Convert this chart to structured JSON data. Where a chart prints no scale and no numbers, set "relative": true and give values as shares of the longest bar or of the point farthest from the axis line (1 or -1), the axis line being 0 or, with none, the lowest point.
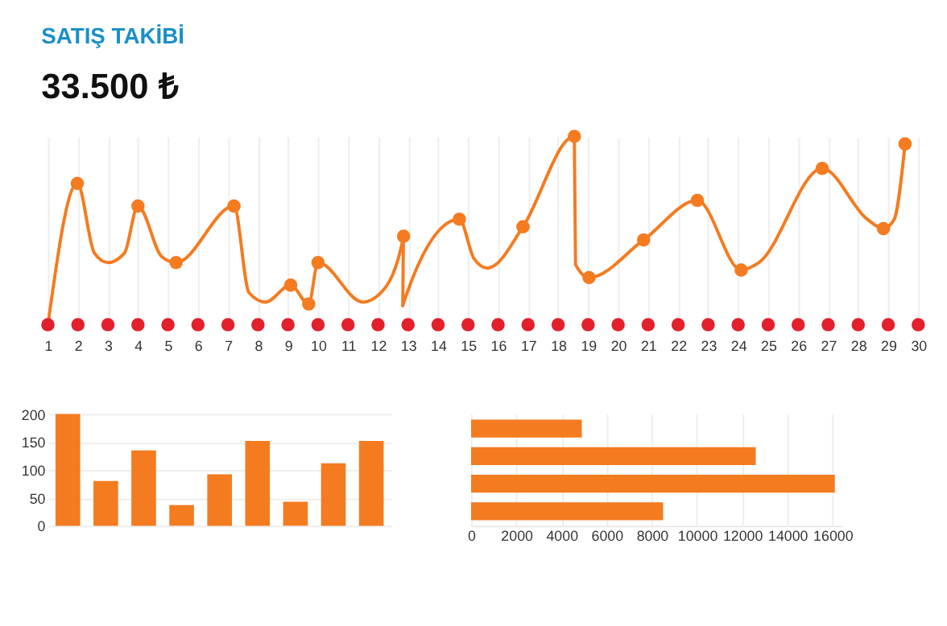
{
  "chart_data": [
    {
      "type": "line",
      "title": "SATIŞ TAKİBİ",
      "subtitle": "33.500 ₺",
      "relative": true,
      "grid": "x",
      "legend": false,
      "tick_labels": "x",
      "xlim": [
        1,
        30
      ],
      "xticks": [
        1,
        2,
        3,
        4,
        5,
        6,
        7,
        8,
        9,
        10,
        11,
        12,
        13,
        14,
        15,
        16,
        17,
        18,
        19,
        20,
        21,
        22,
        23,
        24,
        25,
        26,
        27,
        28,
        29,
        30
      ],
      "series": [
        {
          "type": "line",
          "color": "#f47b20",
          "marker": "none",
          "line_style": "solid",
          "x": [
            1,
            1.98,
            2.55,
            3.0,
            3.55,
            4.0,
            4.8,
            5.27,
            7.2,
            7.7,
            8.25,
            9.09,
            9.69,
            10.0,
            11.5,
            12.1,
            12.85,
            12.82,
            14.71,
            15.2,
            15.65,
            15.83,
            16.83,
            18.54,
            18.58,
            19.03,
            20.85,
            22.64,
            24.1,
            24.69,
            26.8,
            28.3,
            28.84,
            29.2,
            29.56
          ],
          "values": [
            0,
            0.75,
            0.38,
            0.33,
            0.38,
            0.63,
            0.36,
            0.33,
            0.63,
            0.17,
            0.12,
            0.21,
            0.11,
            0.33,
            0.12,
            0.17,
            0.47,
            0.1,
            0.56,
            0.35,
            0.3,
            0.31,
            0.52,
            1.0,
            0.32,
            0.25,
            0.45,
            0.66,
            0.29,
            0.33,
            0.83,
            0.56,
            0.51,
            0.56,
            0.96
          ]
        },
        {
          "type": "scatter",
          "color": "#f47b20",
          "marker": "circle",
          "x": [
            1.98,
            4.0,
            5.27,
            7.2,
            9.09,
            9.69,
            10.0,
            12.85,
            14.71,
            16.83,
            18.54,
            19.03,
            20.85,
            22.64,
            24.1,
            26.8,
            28.84,
            29.56
          ],
          "values": [
            0.75,
            0.63,
            0.33,
            0.63,
            0.21,
            0.11,
            0.33,
            0.47,
            0.56,
            0.52,
            1.0,
            0.25,
            0.45,
            0.66,
            0.29,
            0.83,
            0.51,
            0.96
          ]
        },
        {
          "type": "scatter",
          "color": "#e3202b",
          "marker": "circle",
          "x": [
            1,
            2,
            3,
            4,
            5,
            6,
            7,
            8,
            9,
            10,
            11,
            12,
            13,
            14,
            15,
            16,
            17,
            18,
            19,
            20,
            21,
            22,
            23,
            24,
            25,
            26,
            27,
            28,
            29,
            30
          ],
          "values": [
            0,
            0,
            0,
            0,
            0,
            0,
            0,
            0,
            0,
            0,
            0,
            0,
            0,
            0,
            0,
            0,
            0,
            0,
            0,
            0,
            0,
            0,
            0,
            0,
            0,
            0,
            0,
            0,
            0,
            0
          ]
        }
      ]
    },
    {
      "type": "bar",
      "categories": [
        null,
        null,
        null,
        null,
        null,
        null,
        null,
        null,
        null
      ],
      "values": [
        200,
        80,
        135,
        37,
        92,
        152,
        43,
        112,
        152
      ],
      "color": "#f47b20",
      "ylim": [
        0,
        200
      ],
      "yticks": [
        0,
        50,
        100,
        150,
        200
      ],
      "grid": "y",
      "tick_labels": "y",
      "legend": false
    },
    {
      "type": "bar",
      "orientation": "horizontal",
      "categories": [
        null,
        null,
        null,
        null
      ],
      "values": [
        4900,
        12600,
        16100,
        8500
      ],
      "color": "#f47b20",
      "xlim": [
        0,
        16400
      ],
      "xticks": [
        0,
        {
          "value": 2000,
          "label": "2000"
        },
        {
          "value": 4000,
          "label": "4000"
        },
        {
          "value": 6000,
          "label": "6000"
        },
        {
          "value": 8000,
          "label": "8000"
        },
        {
          "value": 10000,
          "label": "10000"
        },
        {
          "value": 12000,
          "label": "12000"
        },
        {
          "value": 14000,
          "label": "14000"
        },
        {
          "value": 16000,
          "label": "16000"
        }
      ],
      "grid": "x",
      "tick_labels": "x",
      "legend": false
    }
  ]
}
